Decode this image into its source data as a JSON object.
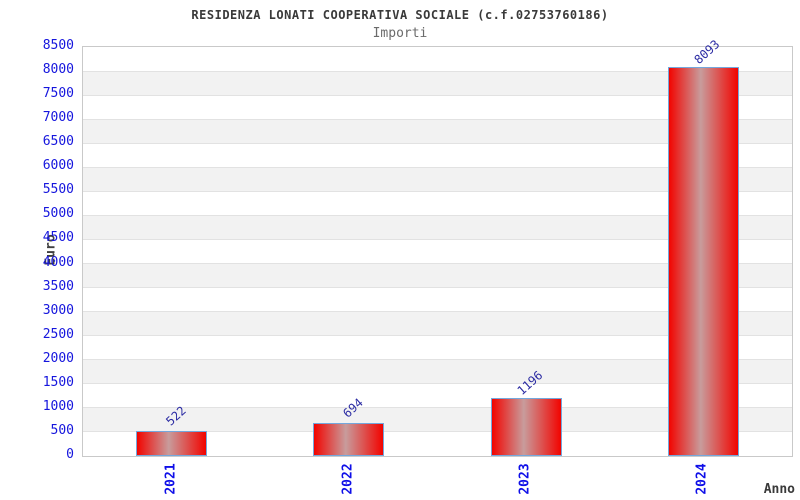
{
  "header": {
    "title": "RESIDENZA LONATI COOPERATIVA SOCIALE (c.f.02753760186)",
    "subtitle": "Importi"
  },
  "chart_data": {
    "type": "bar",
    "title": "RESIDENZA LONATI COOPERATIVA SOCIALE (c.f.02753760186)",
    "subtitle": "Importi",
    "categories": [
      "2021",
      "2022",
      "2023",
      "2024"
    ],
    "values": [
      522,
      694,
      1196,
      8093
    ],
    "xlabel": "Anno",
    "ylabel": "Euro",
    "ylim": [
      0,
      8500
    ],
    "ytick_step": 500,
    "grid": "horizontal-bands",
    "legend_position": "none",
    "colors": {
      "bar_edge_red": "#f20400",
      "bar_center_light": "#c89c9c",
      "bar_border_blue": "#74a7dc",
      "tick_label_blue": "#1515dd",
      "xtick_label_blue": "#0f0fe8",
      "value_label_blue": "#2b2ba3",
      "band_gray": "#f2f2f2",
      "band_white": "#ffffff",
      "gridline_gray": "#e2e2e2",
      "plot_border_gray": "#c9c9c9",
      "title_gray": "#3a3a3a",
      "subtitle_gray": "#6b6b6b"
    }
  }
}
